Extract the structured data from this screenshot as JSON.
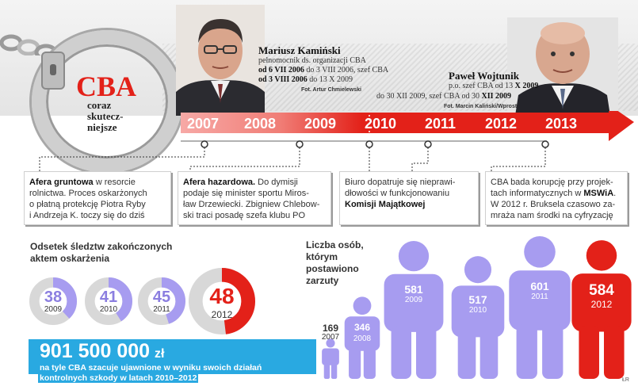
{
  "header": {
    "cba_logo": "CBA",
    "subtitle": "coraz\nskutecz-\nniejsze"
  },
  "people": [
    {
      "name": "Mariusz Kamiński",
      "lines": [
        {
          "pre": "pełnomocnik ds. organizacji CBA",
          "bold": ""
        },
        {
          "pre": "",
          "bold": "od 6 VII 2006",
          "post": " do 3 VIII 2006, szef CBA"
        },
        {
          "pre": "",
          "bold": "od 3 VIII 2006",
          "post": " do 13 X 2009"
        }
      ],
      "credit": "Fot. Artur Chmielewski"
    },
    {
      "name": "Paweł Wojtunik",
      "lines": [
        {
          "pre": "p.o. szef CBA od 13 ",
          "bold": "X 2009"
        },
        {
          "pre": "do 30 XII 2009, szef CBA od 30 ",
          "bold": "XII 2009"
        }
      ],
      "credit": "Fot. Marcin Kaliński/Wprost"
    }
  ],
  "timeline": {
    "years": [
      "2007",
      "2008",
      "2009",
      "2010",
      "2011",
      "2012",
      "2013"
    ],
    "colors": {
      "arrow": "#e32119",
      "arrow_light": "#f7a9a6"
    }
  },
  "events": [
    {
      "lines": [
        [
          {
            "b": "Afera gruntowa"
          },
          {
            "t": " w resorcie"
          }
        ],
        [
          {
            "t": "rolnictwa. Proces oskarżonych"
          }
        ],
        [
          {
            "t": "o płatną protekcję Piotra Ryby"
          }
        ],
        [
          {
            "t": "i Andrzeja K. toczy się do dziś"
          }
        ]
      ]
    },
    {
      "lines": [
        [
          {
            "b": "Afera hazardowa."
          },
          {
            "t": " Do dymisji"
          }
        ],
        [
          {
            "t": "podaje się minister sportu Miros-"
          }
        ],
        [
          {
            "t": "ław Drzewiecki. Zbigniew Chlebow-"
          }
        ],
        [
          {
            "t": "ski traci posadę szefa klubu PO"
          }
        ]
      ]
    },
    {
      "lines": [
        [
          {
            "t": "Biuro dopatruje się nieprawi-"
          }
        ],
        [
          {
            "t": "dłowości w funkcjonowaniu"
          }
        ],
        [
          {
            "b": "Komisji Majątkowej"
          }
        ]
      ]
    },
    {
      "lines": [
        [
          {
            "t": "CBA bada korupcję przy projek-"
          }
        ],
        [
          {
            "t": "tach informatycznych w "
          },
          {
            "b": "MSWiA"
          },
          {
            "t": "."
          }
        ],
        [
          {
            "t": "W 2012 r. Bruksela czasowo za-"
          }
        ],
        [
          {
            "t": "mraża nam środki na cyfryzację"
          }
        ]
      ]
    }
  ],
  "indictments": {
    "title": "Odsetek śledztw zakończonych\naktem oskarżenia",
    "items": [
      {
        "value": 38,
        "year": "2009"
      },
      {
        "value": 41,
        "year": "2010"
      },
      {
        "value": 45,
        "year": "2011"
      },
      {
        "value": 48,
        "year": "2012"
      }
    ],
    "colors": {
      "ring": "#d8d8d8",
      "fill": "#a79cf0",
      "highlight": "#e32119",
      "value_text": "#8b7ee0"
    }
  },
  "damage": {
    "amount": "901 500 000",
    "unit": "zł",
    "description_lines": [
      "na tyle CBA szacuje ujawnione w wyniku swoich działań",
      "kontrolnych szkody w latach 2010–2012"
    ]
  },
  "charged": {
    "title": "Liczba osób,\nktórym\npostawiono\nzarzuty",
    "items": [
      {
        "value": 169,
        "year": "2007"
      },
      {
        "value": 346,
        "year": "2008"
      },
      {
        "value": 581,
        "year": "2009"
      },
      {
        "value": 517,
        "year": "2010"
      },
      {
        "value": 601,
        "year": "2011"
      },
      {
        "value": 584,
        "year": "2012"
      }
    ],
    "colors": {
      "person": "#a79cf0",
      "highlight": "#e32119"
    }
  },
  "credit_initials": "ŁR"
}
